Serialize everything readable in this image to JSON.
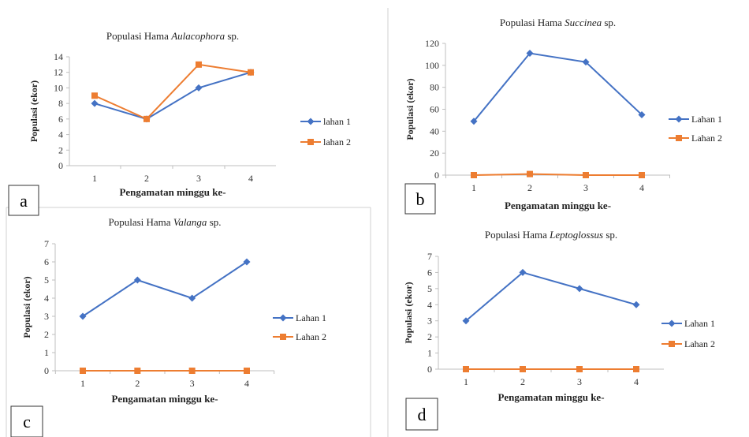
{
  "panels": [
    {
      "letter": "a"
    },
    {
      "letter": "b"
    },
    {
      "letter": "c"
    },
    {
      "letter": "d"
    }
  ],
  "chart_data": [
    {
      "type": "line",
      "title_prefix": "Populasi Hama ",
      "title_species": "Aulacophora",
      "title_suffix": " sp.",
      "xlabel": "Pengamatan minggu ke-",
      "ylabel": "Populasi (ekor)",
      "categories": [
        "1",
        "2",
        "3",
        "4"
      ],
      "ylim": [
        0,
        14
      ],
      "yticks": [
        0,
        2,
        4,
        6,
        8,
        10,
        12,
        14
      ],
      "grid": false,
      "legend_position": "right",
      "series": [
        {
          "name": "lahan 1",
          "values": [
            8,
            6,
            10,
            12
          ],
          "color": "#4472c4",
          "marker": "diamond"
        },
        {
          "name": "lahan 2",
          "values": [
            9,
            6,
            13,
            12
          ],
          "color": "#ed7d31",
          "marker": "square"
        }
      ]
    },
    {
      "type": "line",
      "title_prefix": "Populasi Hama ",
      "title_species": "Succinea",
      "title_suffix": " sp.",
      "xlabel": "Pengamatan minggu ke-",
      "ylabel": "Populasi (ekor)",
      "categories": [
        "1",
        "2",
        "3",
        "4"
      ],
      "ylim": [
        0,
        120
      ],
      "yticks": [
        0,
        20,
        40,
        60,
        80,
        100,
        120
      ],
      "grid": false,
      "legend_position": "right",
      "series": [
        {
          "name": "Lahan 1",
          "values": [
            49,
            111,
            103,
            55
          ],
          "color": "#4472c4",
          "marker": "diamond"
        },
        {
          "name": "Lahan 2",
          "values": [
            0,
            1,
            0,
            0
          ],
          "color": "#ed7d31",
          "marker": "square"
        }
      ]
    },
    {
      "type": "line",
      "title_prefix": "Populasi Hama ",
      "title_species": "Valanga",
      "title_suffix": " sp.",
      "xlabel": "Pengamatan minggu ke-",
      "ylabel": "Populasi (ekor)",
      "categories": [
        "1",
        "2",
        "3",
        "4"
      ],
      "ylim": [
        0,
        7
      ],
      "yticks": [
        0,
        1,
        2,
        3,
        4,
        5,
        6,
        7
      ],
      "grid": false,
      "legend_position": "right",
      "series": [
        {
          "name": "Lahan 1",
          "values": [
            3,
            5,
            4,
            6
          ],
          "color": "#4472c4",
          "marker": "diamond"
        },
        {
          "name": "Lahan 2",
          "values": [
            0,
            0,
            0,
            0
          ],
          "color": "#ed7d31",
          "marker": "square"
        }
      ]
    },
    {
      "type": "line",
      "title_prefix": "Populasi Hama ",
      "title_species": "Leptoglossus",
      "title_suffix": " sp.",
      "xlabel": "Pengamatan minggu ke-",
      "ylabel": "Populasi (ekor)",
      "categories": [
        "1",
        "2",
        "3",
        "4"
      ],
      "ylim": [
        0,
        7
      ],
      "yticks": [
        0,
        1,
        2,
        3,
        4,
        5,
        6,
        7
      ],
      "grid": false,
      "legend_position": "right",
      "series": [
        {
          "name": "Lahan 1",
          "values": [
            3,
            6,
            5,
            4
          ],
          "color": "#4472c4",
          "marker": "diamond"
        },
        {
          "name": "Lahan 2",
          "values": [
            0,
            0,
            0,
            0
          ],
          "color": "#ed7d31",
          "marker": "square"
        }
      ]
    }
  ]
}
